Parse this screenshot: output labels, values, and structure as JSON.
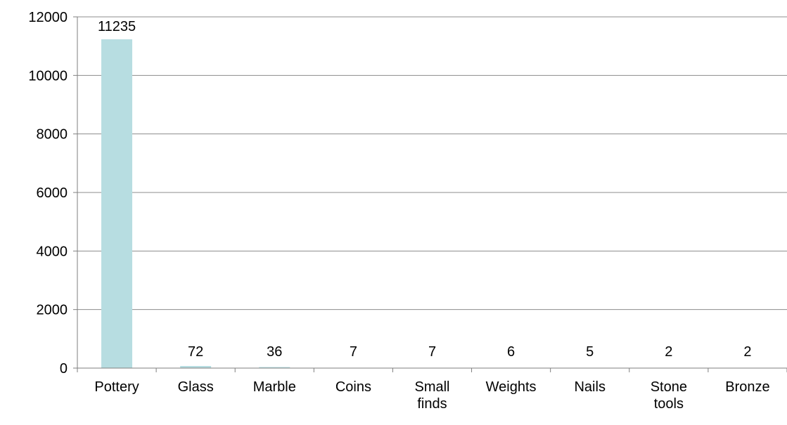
{
  "chart_data": {
    "type": "bar",
    "title": "",
    "xlabel": "",
    "ylabel": "",
    "categories": [
      "Pottery",
      "Glass",
      "Marble",
      "Coins",
      "Small finds",
      "Weights",
      "Nails",
      "Stone tools",
      "Bronze"
    ],
    "values": [
      11235,
      72,
      36,
      7,
      7,
      6,
      5,
      2,
      2
    ],
    "data_labels": [
      "11235",
      "72",
      "36",
      "7",
      "7",
      "6",
      "5",
      "2",
      "2"
    ],
    "ylim": [
      0,
      12000
    ],
    "yticks": [
      0,
      2000,
      4000,
      6000,
      8000,
      10000,
      12000
    ],
    "ytick_labels": [
      "0",
      "2000",
      "4000",
      "6000",
      "8000",
      "10000",
      "12000"
    ],
    "grid": "horizontal major gridlines",
    "legend": "none",
    "colors": {
      "bar": "#b7dde1",
      "grid": "#8c8c8c",
      "axis": "#7f7f7f"
    }
  }
}
